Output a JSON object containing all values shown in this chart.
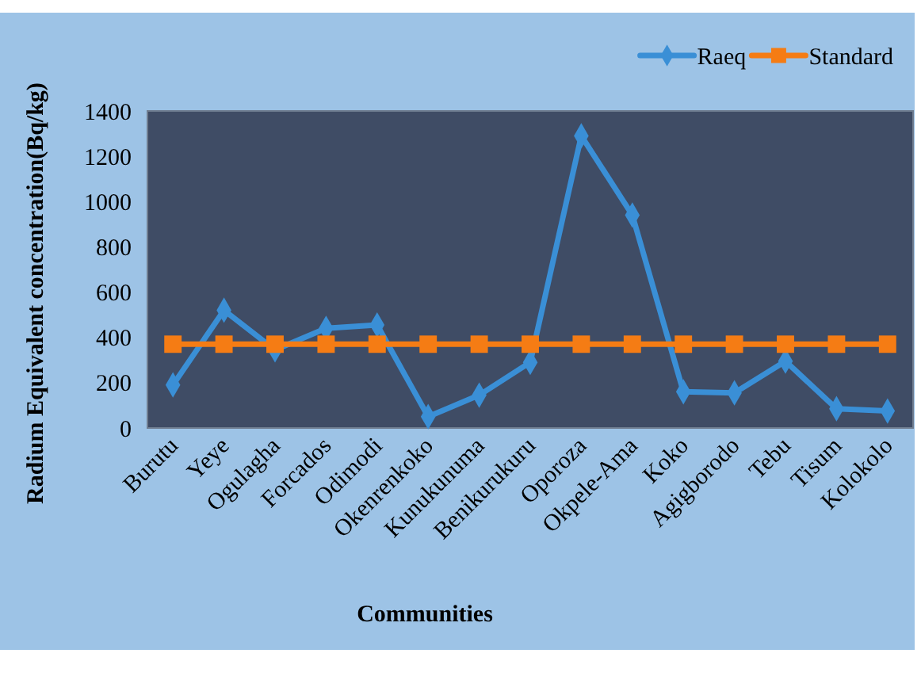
{
  "chart_data": {
    "type": "line",
    "ylabel": "Radium Equivalent concentration(Bq/kg)",
    "xlabel": "Communities",
    "categories": [
      "Burutu",
      "Yeye",
      "Ogulagha",
      "Forcados",
      "Odimodi",
      "Okenrenkoko",
      "Kunukunuma",
      "Benikurukuru",
      "Oporoza",
      "Okpele-Ama",
      "Koko",
      "Agigborodo",
      "Tebu",
      "Tisum",
      "Kolokolo"
    ],
    "series": [
      {
        "name": "Raeq",
        "color": "#3a8fd6",
        "marker": "diamond",
        "values": [
          190,
          520,
          345,
          440,
          455,
          50,
          145,
          290,
          1290,
          940,
          160,
          155,
          295,
          85,
          75
        ]
      },
      {
        "name": "Standard",
        "color": "#f57c14",
        "marker": "square",
        "values": [
          370,
          370,
          370,
          370,
          370,
          370,
          370,
          370,
          370,
          370,
          370,
          370,
          370,
          370,
          370
        ]
      }
    ],
    "ylim": [
      0,
      1400
    ],
    "yticks": [
      0,
      200,
      400,
      600,
      800,
      1000,
      1200,
      1400
    ],
    "grid": false,
    "legend": "top right",
    "line_style": "solid"
  }
}
